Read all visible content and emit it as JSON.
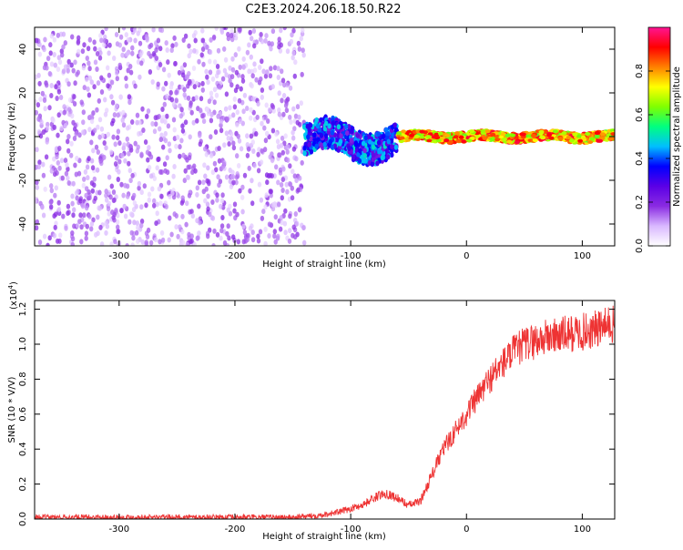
{
  "title": "C2E3.2024.206.18.50.R22",
  "colors": {
    "snr_line": "#ee3333",
    "axis": "#000000",
    "colormap": [
      "#ffffff",
      "#d9b8ff",
      "#8a2be2",
      "#5b00e6",
      "#0000ff",
      "#00bfff",
      "#00ff80",
      "#7fff00",
      "#ffff00",
      "#ff8000",
      "#ff0000",
      "#ff1493"
    ]
  },
  "chart_data": [
    {
      "type": "heatmap",
      "name": "spectrogram",
      "xlabel": "Height of straight line (km)",
      "ylabel": "Frequency (Hz)",
      "xlim": [
        -373,
        128
      ],
      "ylim": [
        -50,
        50
      ],
      "x_ticks": [
        -300,
        -200,
        -100,
        0,
        100
      ],
      "y_ticks": [
        -40,
        -20,
        0,
        20,
        40
      ],
      "grid": false,
      "colorbar": {
        "label": "Normalized spectral amplitude",
        "range": [
          0,
          1
        ],
        "ticks": [
          0.0,
          0.2,
          0.4,
          0.6,
          0.8
        ]
      },
      "regions": [
        {
          "x_range": [
            -373,
            -140
          ],
          "f_range": [
            -50,
            50
          ],
          "amplitude": [
            0.05,
            0.2
          ],
          "note_level": "noise"
        },
        {
          "x_range": [
            -140,
            -60
          ],
          "f_range": [
            -10,
            10
          ],
          "amplitude": [
            0.2,
            0.5
          ]
        },
        {
          "x_range": [
            -60,
            128
          ],
          "f_range": [
            -3,
            3
          ],
          "amplitude": [
            0.6,
            0.95
          ]
        }
      ]
    },
    {
      "type": "line",
      "name": "snr",
      "xlabel": "Height of straight line (km)",
      "ylabel": "SNR (10 * V/V)",
      "y_multiplier": "(x10",
      "y_multiplier_exp": "4",
      "y_multiplier_close": ")",
      "xlim": [
        -373,
        128
      ],
      "ylim": [
        0,
        1.25
      ],
      "x_ticks": [
        -300,
        -200,
        -100,
        0,
        100
      ],
      "y_ticks": [
        0.0,
        0.2,
        0.4,
        0.6,
        0.8,
        1.0,
        1.2
      ],
      "grid": false,
      "series": [
        {
          "x": [
            -373,
            -300,
            -250,
            -200,
            -150,
            -130,
            -110,
            -100,
            -90,
            -80,
            -70,
            -60,
            -50,
            -40,
            -30,
            -20,
            -10,
            0,
            10,
            20,
            30,
            40,
            50,
            60,
            70,
            80,
            90,
            100,
            110,
            120,
            128
          ],
          "y": [
            0.01,
            0.01,
            0.01,
            0.01,
            0.01,
            0.02,
            0.04,
            0.06,
            0.08,
            0.12,
            0.15,
            0.12,
            0.08,
            0.1,
            0.25,
            0.4,
            0.5,
            0.6,
            0.7,
            0.8,
            0.88,
            0.95,
            1.0,
            1.02,
            1.04,
            1.05,
            1.06,
            1.07,
            1.08,
            1.1,
            1.12
          ]
        }
      ]
    }
  ]
}
